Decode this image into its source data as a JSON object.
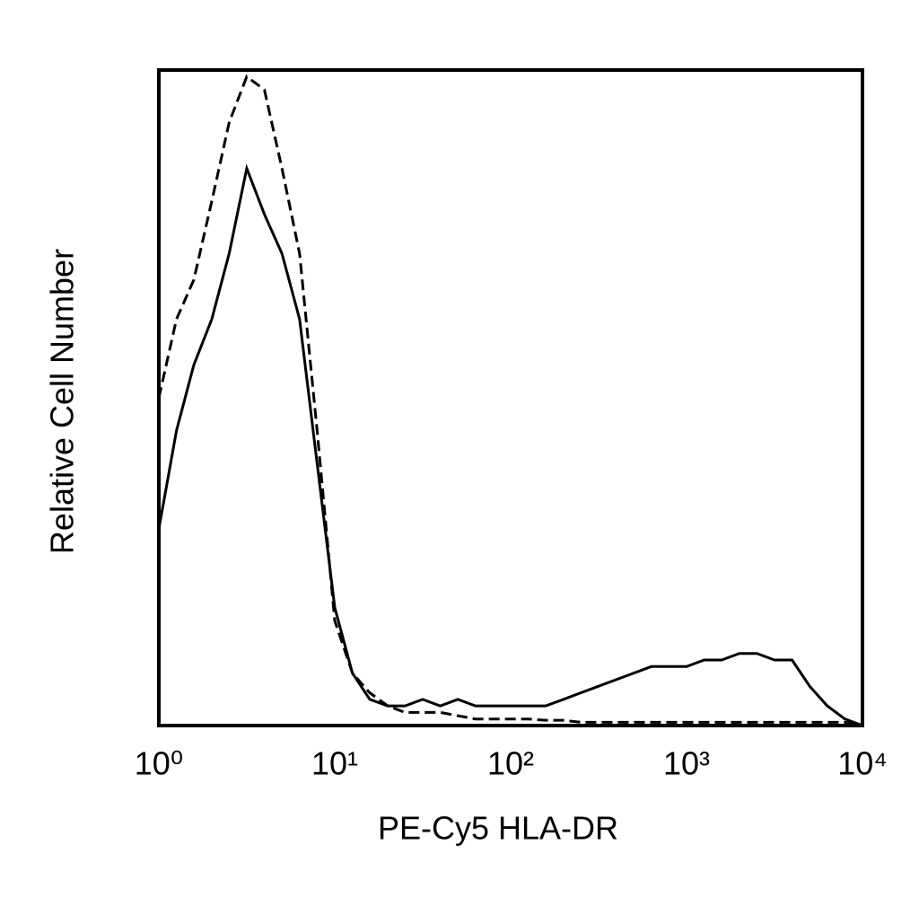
{
  "chart_data": {
    "type": "line",
    "x_label": "PE-Cy5 HLA-DR",
    "y_label": "Relative Cell Number",
    "xscale": "log",
    "xlim": [
      1,
      10000
    ],
    "ylim": [
      0,
      100
    ],
    "xticks": [
      {
        "value": 1,
        "label": "10⁰"
      },
      {
        "value": 10,
        "label": "10¹"
      },
      {
        "value": 100,
        "label": "10²"
      },
      {
        "value": 1000,
        "label": "10³"
      },
      {
        "value": 10000,
        "label": "10⁴"
      }
    ],
    "x": [
      1,
      1.26,
      1.58,
      2,
      2.51,
      3.16,
      3.98,
      5.01,
      6.31,
      7.94,
      10,
      12.6,
      15.8,
      20,
      25.1,
      31.6,
      39.8,
      50.1,
      63.1,
      79.4,
      100,
      126,
      158,
      200,
      251,
      316,
      398,
      501,
      631,
      794,
      1000,
      1259,
      1585,
      1995,
      2512,
      3162,
      3981,
      5012,
      6310,
      7943,
      10000
    ],
    "series": [
      {
        "color": "#000000",
        "dash": "solid",
        "values": [
          30,
          45,
          55,
          62,
          72,
          85,
          78,
          72,
          62,
          40,
          18,
          8,
          4,
          3,
          3,
          4,
          3,
          4,
          3,
          3,
          3,
          3,
          3,
          4,
          5,
          6,
          7,
          8,
          9,
          9,
          9,
          10,
          10,
          11,
          11,
          10,
          10,
          6,
          3,
          1,
          0
        ]
      },
      {
        "color": "#000000",
        "dash": "dashed",
        "values": [
          50,
          62,
          68,
          80,
          92,
          99,
          97,
          85,
          72,
          45,
          16,
          8,
          5,
          3,
          2,
          2,
          2,
          1.5,
          1,
          1,
          1,
          1,
          0.8,
          0.8,
          0.5,
          0.5,
          0.5,
          0.5,
          0.5,
          0.5,
          0.5,
          0.5,
          0.5,
          0.5,
          0.5,
          0.5,
          0.5,
          0.5,
          0.5,
          0.5,
          0
        ]
      }
    ]
  }
}
